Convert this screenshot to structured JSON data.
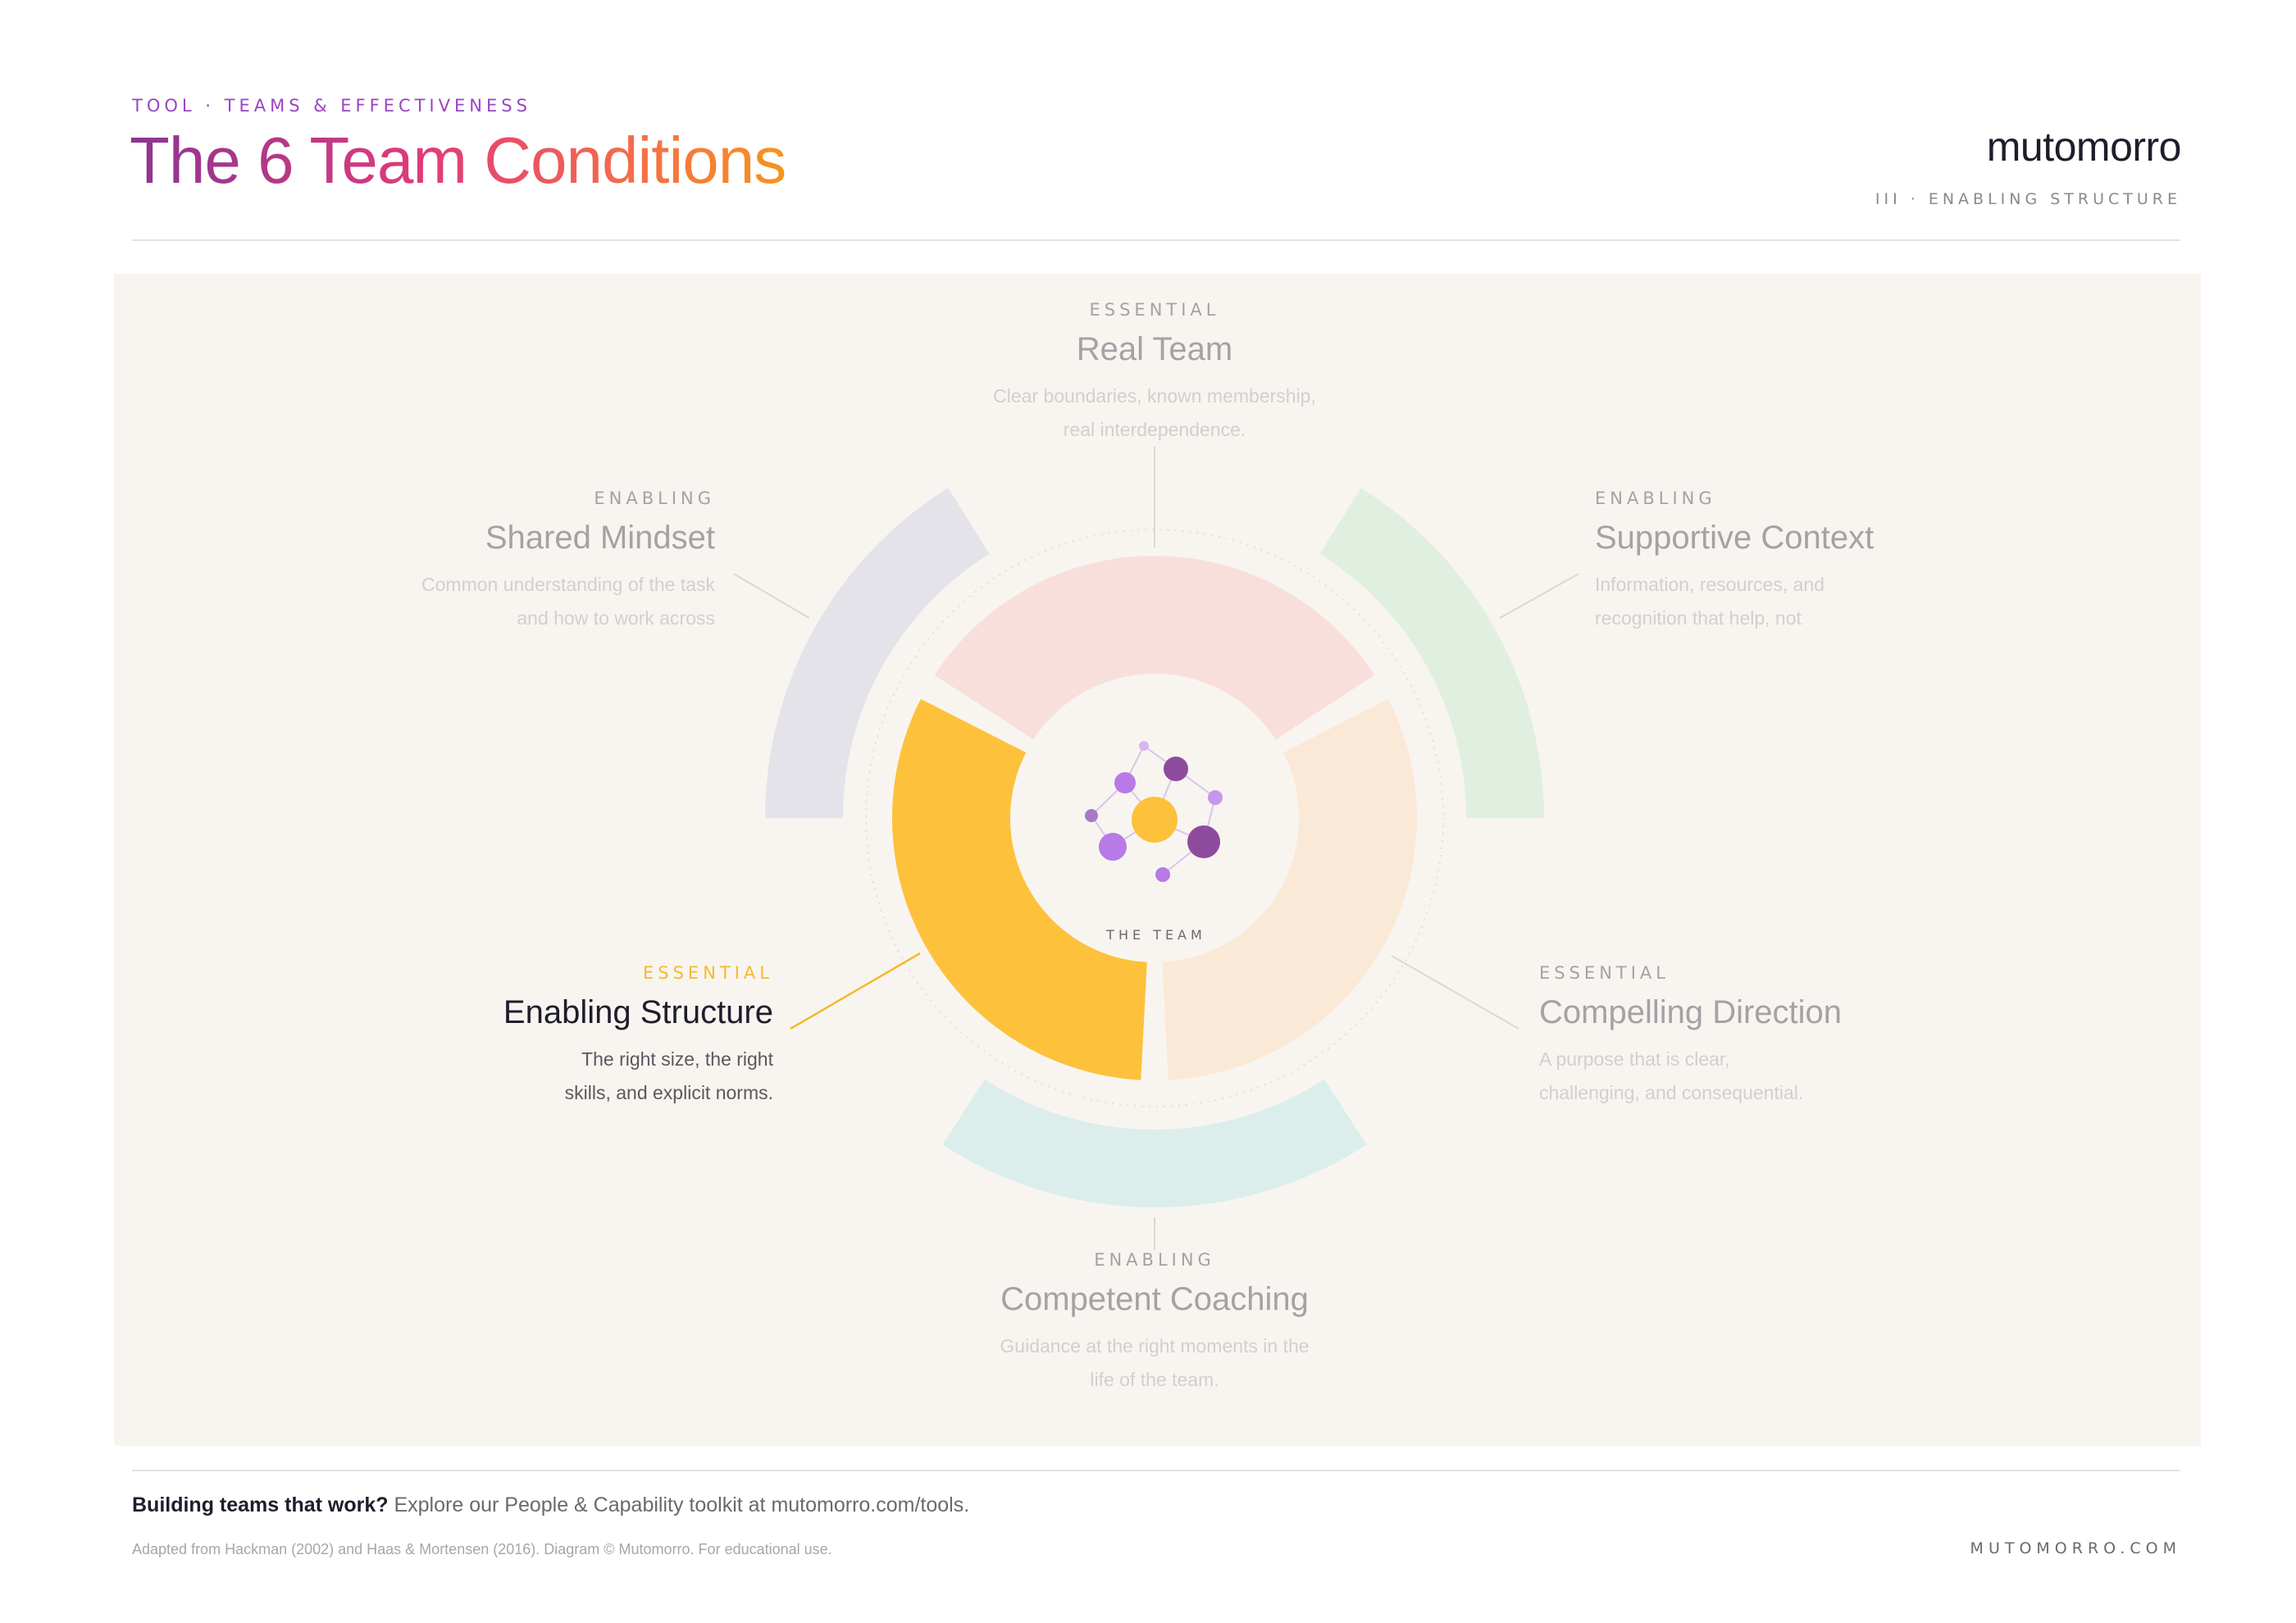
{
  "header": {
    "eyebrow": "TOOL · TEAMS & EFFECTIVENESS",
    "title": "The 6 Team Conditions",
    "brand": "mutomorro",
    "section_tag": "III · ENABLING STRUCTURE"
  },
  "diagram": {
    "center_label": "THE TEAM",
    "active_condition": "Enabling Structure",
    "conditions": {
      "real_team": {
        "kind": "ESSENTIAL",
        "name": "Real Team",
        "desc_line1": "Clear boundaries, known membership,",
        "desc_line2": "real interdependence.",
        "color": "#f9dfdc"
      },
      "shared_mindset": {
        "kind": "ENABLING",
        "name": "Shared Mindset",
        "desc_line1": "Common understanding of the task",
        "desc_line2": "and how to work across",
        "color": "#e4e3ea"
      },
      "supportive_context": {
        "kind": "ENABLING",
        "name": "Supportive Context",
        "desc_line1": "Information, resources, and",
        "desc_line2": "recognition that help, not",
        "color": "#e1efe1"
      },
      "enabling_structure": {
        "kind": "ESSENTIAL",
        "name": "Enabling Structure",
        "desc_line1": "The right size, the right",
        "desc_line2": "skills, and explicit norms.",
        "color": "#fdc13c"
      },
      "compelling_direction": {
        "kind": "ESSENTIAL",
        "name": "Compelling Direction",
        "desc_line1": "A purpose that is clear,",
        "desc_line2": "challenging, and consequential.",
        "color": "#fbe9d7"
      },
      "competent_coaching": {
        "kind": "ENABLING",
        "name": "Competent Coaching",
        "desc_line1": "Guidance at the right moments in the",
        "desc_line2": "life of the team.",
        "color": "#dbeeec"
      }
    },
    "colors": {
      "panel": "#f8f5f0",
      "team_core": "#fdc13c",
      "team_purple_dark": "#8e4b9e",
      "team_purple_light": "#b77ae6"
    }
  },
  "footer": {
    "cta_strong": "Building teams that work?",
    "cta_rest": " Explore our People & Capability toolkit at mutomorro.com/tools.",
    "credit": "Adapted from Hackman (2002) and Haas & Mortensen (2016). Diagram © Mutomorro. For educational use.",
    "site": "MUTOMORRO.COM"
  }
}
